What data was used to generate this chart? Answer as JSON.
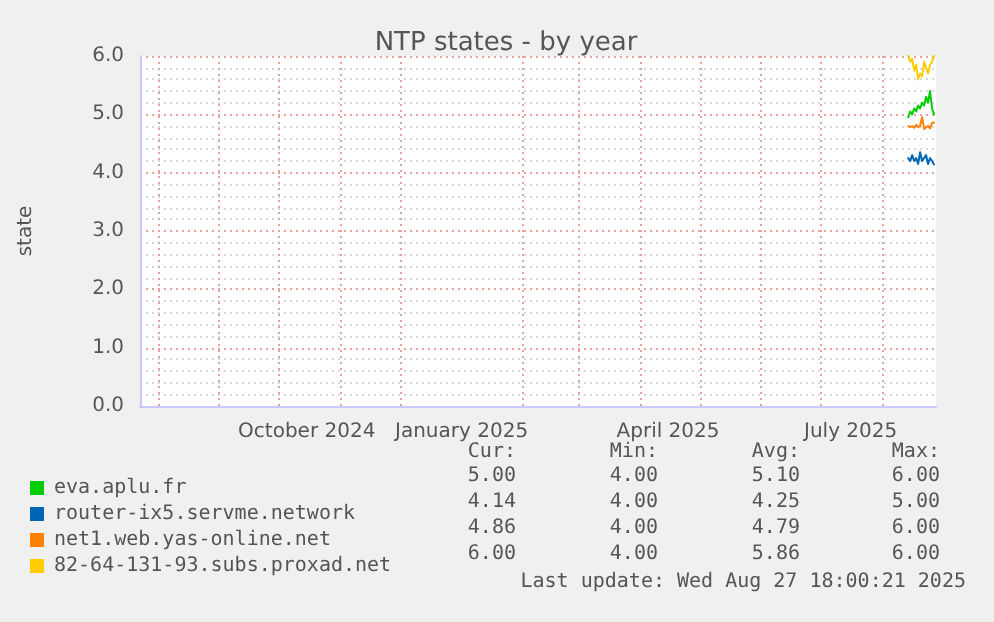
{
  "chart_data": {
    "type": "line",
    "title": "NTP states - by year",
    "ylabel": "state",
    "x": [
      "2025-08-14",
      "2025-08-15",
      "2025-08-16",
      "2025-08-17",
      "2025-08-18",
      "2025-08-19",
      "2025-08-20",
      "2025-08-21",
      "2025-08-22",
      "2025-08-23",
      "2025-08-24",
      "2025-08-25",
      "2025-08-26",
      "2025-08-27"
    ],
    "series": [
      {
        "name": "eva.aplu.fr",
        "color": "#00cc00",
        "values": [
          4.95,
          5.05,
          5.0,
          5.1,
          5.05,
          5.15,
          5.1,
          5.2,
          5.15,
          5.3,
          5.2,
          5.4,
          5.1,
          5.0
        ]
      },
      {
        "name": "router-ix5.servme.network",
        "color": "#0066b3",
        "values": [
          4.25,
          4.2,
          4.3,
          4.2,
          4.25,
          4.15,
          4.35,
          4.2,
          4.25,
          4.3,
          4.15,
          4.25,
          4.2,
          4.14
        ]
      },
      {
        "name": "net1.web.yas-online.net",
        "color": "#ff8000",
        "values": [
          4.8,
          4.78,
          4.8,
          4.77,
          4.82,
          4.78,
          4.8,
          4.95,
          4.75,
          4.78,
          4.8,
          4.76,
          4.85,
          4.86
        ]
      },
      {
        "name": "82-64-131-93.subs.proxad.net",
        "color": "#ffcc00",
        "values": [
          6.0,
          5.9,
          5.95,
          5.75,
          5.85,
          5.6,
          5.7,
          5.65,
          5.9,
          5.8,
          5.7,
          5.85,
          5.9,
          6.0
        ]
      }
    ],
    "xlim": [
      "2024-07-23",
      "2025-08-28"
    ],
    "xticks": [
      {
        "value": "2024-08-01",
        "label": null
      },
      {
        "value": "2024-09-01",
        "label": null
      },
      {
        "value": "2024-10-01",
        "label": null
      },
      {
        "value": "2024-10-15",
        "label": "October 2024"
      },
      {
        "value": "2024-11-01",
        "label": null
      },
      {
        "value": "2024-12-01",
        "label": null
      },
      {
        "value": "2025-01-01",
        "label": "January 2025"
      },
      {
        "value": "2025-02-01",
        "label": null
      },
      {
        "value": "2025-03-01",
        "label": null
      },
      {
        "value": "2025-04-01",
        "label": null
      },
      {
        "value": "2025-04-15",
        "label": "April 2025"
      },
      {
        "value": "2025-05-01",
        "label": null
      },
      {
        "value": "2025-06-01",
        "label": null
      },
      {
        "value": "2025-07-01",
        "label": null
      },
      {
        "value": "2025-07-16",
        "label": "July 2025"
      },
      {
        "value": "2025-08-01",
        "label": null
      }
    ],
    "ylim": [
      0,
      6
    ],
    "yticks": [
      {
        "value": 0,
        "label": "0.0"
      },
      {
        "value": 1,
        "label": "1.0"
      },
      {
        "value": 2,
        "label": "2.0"
      },
      {
        "value": 3,
        "label": "3.0"
      },
      {
        "value": 4,
        "label": "4.0"
      },
      {
        "value": 5,
        "label": "5.0"
      },
      {
        "value": 6,
        "label": "6.0"
      }
    ],
    "grid": true,
    "legend": "bottom left",
    "marker": "none",
    "line_style": "solid",
    "annotations": [
      "Cur:",
      "Min:",
      "Avg:",
      "Max:",
      "5.00",
      "4.00",
      "5.10",
      "6.00",
      "4.14",
      "4.00",
      "4.25",
      "5.00",
      "4.86",
      "4.00",
      "4.79",
      "6.00",
      "6.00",
      "4.00",
      "5.86",
      "6.00",
      "Last update: Wed Aug 27 18:00:21 2025"
    ]
  }
}
